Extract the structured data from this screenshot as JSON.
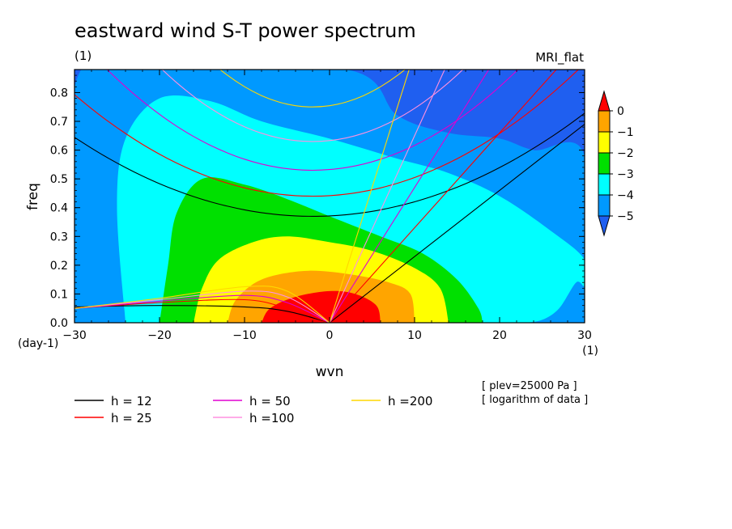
{
  "chart_data": {
    "type": "heatmap",
    "title": "eastward wind S-T power spectrum",
    "subtitle_left": "(1)",
    "subtitle_right": "MRI_flat",
    "xlabel": "wvn",
    "ylabel": "freq",
    "x_unit": "(1)",
    "y_unit": "(day-1)",
    "xlim": [
      -30,
      30
    ],
    "ylim": [
      0,
      0.88
    ],
    "xticks": [
      -30,
      -20,
      -10,
      0,
      10,
      20,
      30
    ],
    "yticks": [
      0.0,
      0.1,
      0.2,
      0.3,
      0.4,
      0.5,
      0.6,
      0.7,
      0.8
    ],
    "yticklabels": [
      "0.0",
      "0.1",
      "0.2",
      "0.3",
      "0.4",
      "0.5",
      "0.6",
      "0.7",
      "0.8"
    ],
    "notes": [
      "[ plev=25000 Pa ]",
      "[ logarithm of data ]"
    ],
    "colorbar": {
      "levels": [
        0,
        -1,
        -2,
        -3,
        -4,
        -5
      ],
      "labels": [
        "0",
        "−1",
        "−2",
        "−3",
        "−4",
        "−5"
      ],
      "colors": [
        "#ff0000",
        "#ffa500",
        "#ffff00",
        "#00e000",
        "#00ffff",
        "#0099ff",
        "#1f5ff0"
      ]
    },
    "fill_regions": [
      {
        "level": "below -5",
        "color": "#1f5ff0",
        "x": [
          -30,
          30
        ],
        "y": [
          0,
          0.88
        ]
      },
      {
        "level": "-5 to -4",
        "color": "#0099ff",
        "boundary": [
          [
            -30,
            0
          ],
          [
            -30,
            0.82
          ],
          [
            -22,
            0.88
          ],
          [
            2,
            0.88
          ],
          [
            8,
            0.72
          ],
          [
            14,
            0.66
          ],
          [
            20,
            0.64
          ],
          [
            24,
            0.6
          ],
          [
            30,
            0.58
          ],
          [
            30,
            0
          ]
        ]
      },
      {
        "level": "-4 to -3",
        "color": "#00ffff",
        "boundary": [
          [
            -24,
            0
          ],
          [
            -25,
            0.4
          ],
          [
            -24,
            0.64
          ],
          [
            -20,
            0.78
          ],
          [
            -14,
            0.77
          ],
          [
            -8,
            0.7
          ],
          [
            0,
            0.64
          ],
          [
            8,
            0.57
          ],
          [
            14,
            0.52
          ],
          [
            20,
            0.44
          ],
          [
            26,
            0.32
          ],
          [
            30,
            0.22
          ],
          [
            30,
            0.13
          ],
          [
            29,
            0.14
          ],
          [
            27,
            0.05
          ],
          [
            25,
            0.01
          ],
          [
            23,
            0
          ]
        ]
      },
      {
        "level": "-3 to -2",
        "color": "#00e000",
        "boundary": [
          [
            -20,
            0
          ],
          [
            -19,
            0.2
          ],
          [
            -18,
            0.38
          ],
          [
            -15,
            0.5
          ],
          [
            -10,
            0.48
          ],
          [
            -5,
            0.43
          ],
          [
            0,
            0.37
          ],
          [
            6,
            0.3
          ],
          [
            11,
            0.24
          ],
          [
            15,
            0.15
          ],
          [
            17.5,
            0.05
          ],
          [
            18,
            0
          ]
        ]
      },
      {
        "level": "-2 to -1",
        "color": "#ffff00",
        "boundary": [
          [
            -16,
            0
          ],
          [
            -15,
            0.12
          ],
          [
            -13,
            0.22
          ],
          [
            -9,
            0.28
          ],
          [
            -5,
            0.3
          ],
          [
            0,
            0.28
          ],
          [
            5,
            0.25
          ],
          [
            10,
            0.19
          ],
          [
            13,
            0.12
          ],
          [
            14,
            0
          ]
        ]
      },
      {
        "level": "-1 to 0",
        "color": "#ffa500",
        "boundary": [
          [
            -12,
            0
          ],
          [
            -11,
            0.08
          ],
          [
            -8,
            0.15
          ],
          [
            -3,
            0.18
          ],
          [
            2,
            0.17
          ],
          [
            7,
            0.14
          ],
          [
            9.5,
            0.1
          ],
          [
            10,
            0
          ]
        ]
      },
      {
        "level": "above 0",
        "color": "#ff0000",
        "boundary": [
          [
            -8,
            0
          ],
          [
            -7,
            0.05
          ],
          [
            -4,
            0.09
          ],
          [
            0,
            0.11
          ],
          [
            3,
            0.1
          ],
          [
            5.5,
            0.06
          ],
          [
            6,
            0
          ]
        ]
      }
    ],
    "series": [
      {
        "name": "h = 12",
        "color": "#000000"
      },
      {
        "name": "h = 25",
        "color": "#ff0000"
      },
      {
        "name": "h = 50",
        "color": "#e000d0"
      },
      {
        "name": "h =100",
        "color": "#ff90e0"
      },
      {
        "name": "h =200",
        "color": "#ffd700"
      }
    ],
    "dispersion_curves": [
      {
        "h": 12,
        "color": "#000000",
        "kelvin_slope": 0.023,
        "ig_min": 0.37,
        "ig_curv": 0.00035,
        "mrg": [
          [
            -30,
            0.055
          ],
          [
            -20,
            0.06
          ],
          [
            -10,
            0.055
          ],
          [
            -5,
            0.04
          ],
          [
            0,
            0
          ]
        ]
      },
      {
        "h": 25,
        "color": "#ff0000",
        "kelvin_slope": 0.033,
        "ig_min": 0.44,
        "ig_curv": 0.00045,
        "mrg": [
          [
            -30,
            0.05
          ],
          [
            -20,
            0.07
          ],
          [
            -10,
            0.08
          ],
          [
            -5,
            0.05
          ],
          [
            0,
            0
          ]
        ]
      },
      {
        "h": 50,
        "color": "#e000d0",
        "kelvin_slope": 0.047,
        "ig_min": 0.53,
        "ig_curv": 0.0006,
        "mrg": [
          [
            -30,
            0.05
          ],
          [
            -20,
            0.075
          ],
          [
            -10,
            0.095
          ],
          [
            -5,
            0.07
          ],
          [
            0,
            0
          ]
        ]
      },
      {
        "h": 100,
        "color": "#ff90e0",
        "kelvin_slope": 0.065,
        "ig_min": 0.63,
        "ig_curv": 0.0008,
        "mrg": [
          [
            -30,
            0.05
          ],
          [
            -20,
            0.08
          ],
          [
            -10,
            0.11
          ],
          [
            -5,
            0.09
          ],
          [
            0,
            0
          ]
        ]
      },
      {
        "h": 200,
        "color": "#ffd700",
        "kelvin_slope": 0.094,
        "ig_min": 0.75,
        "ig_curv": 0.0011,
        "mrg": [
          [
            -30,
            0.05
          ],
          [
            -20,
            0.085
          ],
          [
            -10,
            0.125
          ],
          [
            -5,
            0.11
          ],
          [
            0,
            0
          ]
        ]
      }
    ]
  }
}
